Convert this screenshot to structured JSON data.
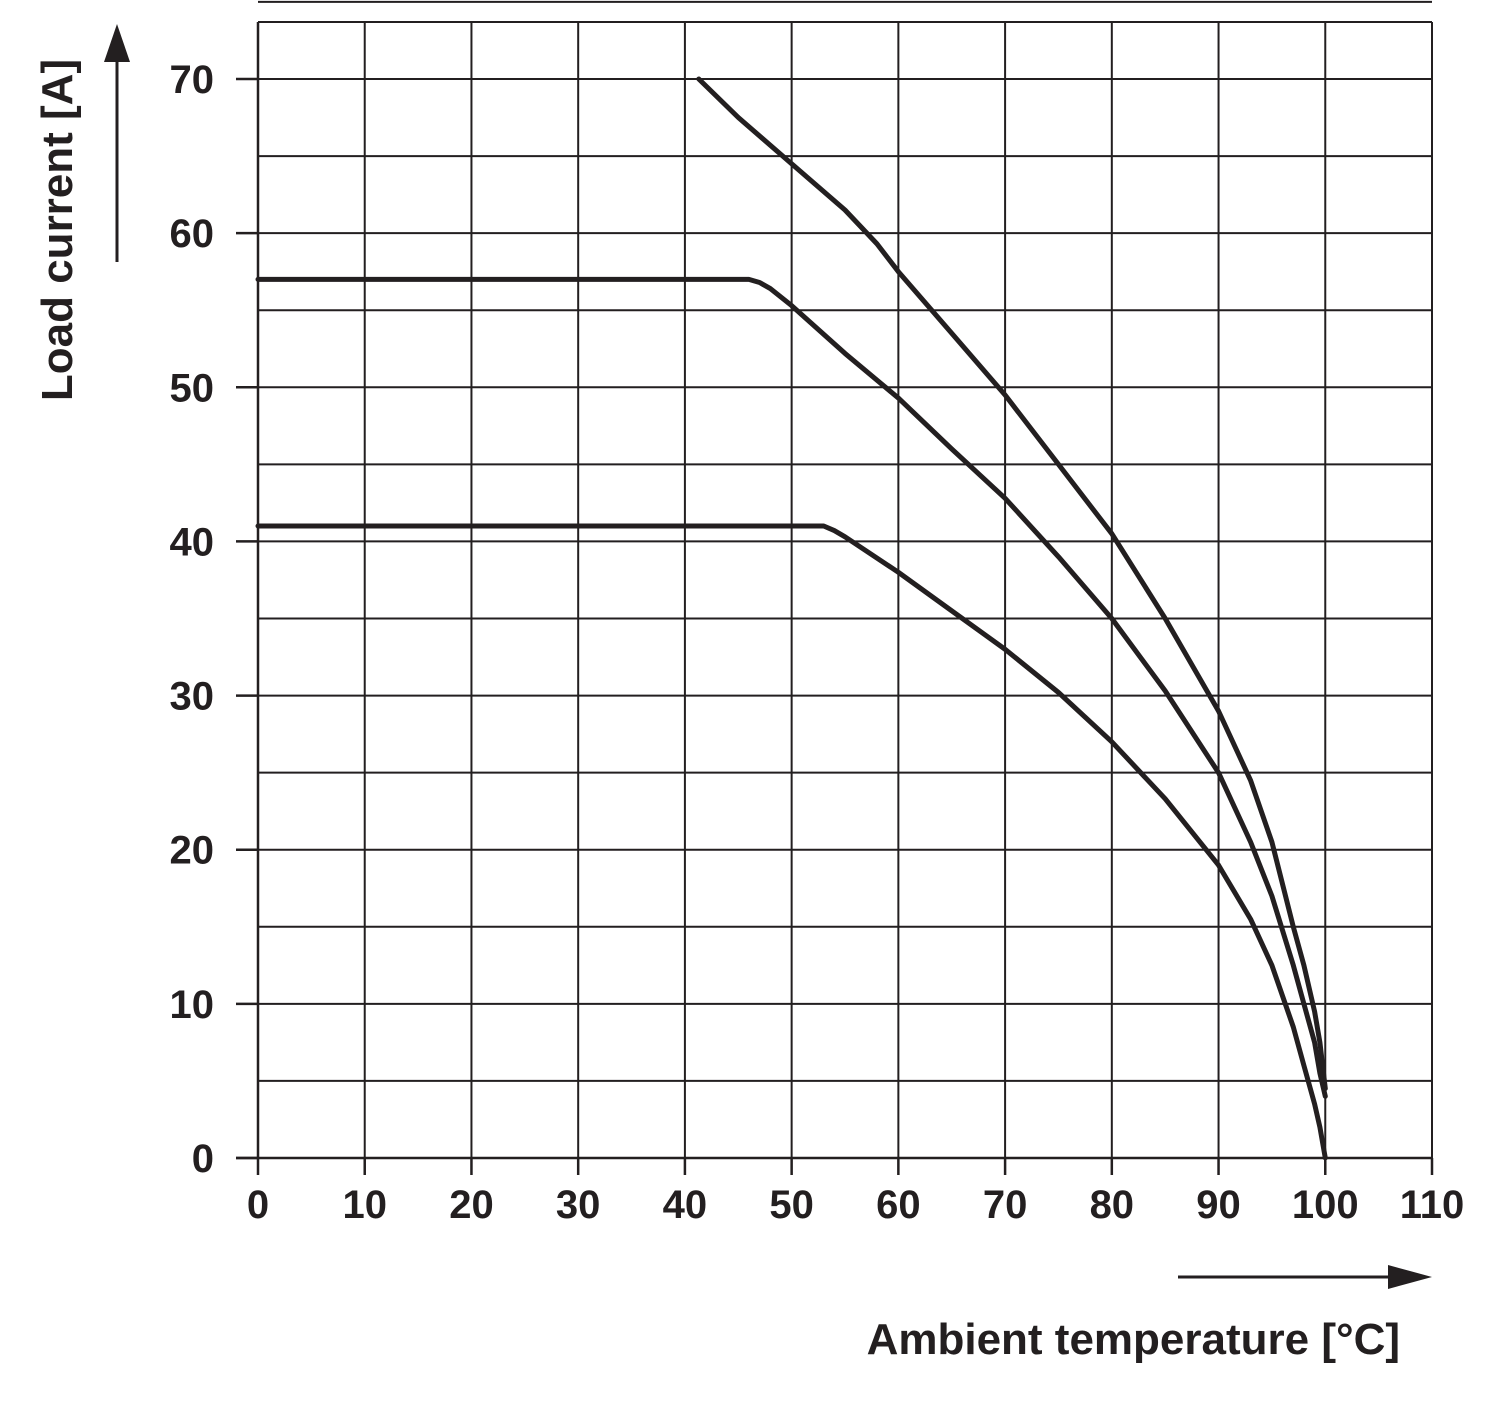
{
  "chart_data": {
    "type": "line",
    "xlabel": "Ambient temperature [°C]",
    "ylabel": "Load current [A]",
    "xlim": [
      0,
      110
    ],
    "ylim": [
      0,
      70
    ],
    "x_ticks": [
      0,
      10,
      20,
      30,
      40,
      50,
      60,
      70,
      80,
      90,
      100,
      110
    ],
    "y_ticks": [
      0,
      10,
      20,
      30,
      40,
      50,
      60,
      70
    ],
    "grid": true,
    "line_color": "#231f20",
    "series": [
      {
        "x": [
          41.3,
          45,
          50,
          55,
          58,
          60,
          65,
          70,
          75,
          80,
          85,
          90,
          93,
          95,
          97,
          98,
          99,
          99.5,
          100
        ],
        "y": [
          70,
          67.5,
          64.5,
          61.5,
          59.3,
          57.5,
          53.5,
          49.5,
          45,
          40.5,
          35,
          29,
          24.5,
          20.5,
          15,
          12.5,
          9.5,
          7.5,
          4.5
        ]
      },
      {
        "x": [
          0,
          46,
          47,
          48,
          50,
          55,
          60,
          65,
          70,
          75,
          80,
          85,
          90,
          93,
          95,
          97,
          98,
          99,
          99.5,
          100
        ],
        "y": [
          57,
          57,
          56.8,
          56.4,
          55.3,
          52.2,
          49.3,
          46,
          42.8,
          39,
          35,
          30.3,
          25,
          20.5,
          17,
          12.5,
          10,
          7.5,
          5.5,
          4
        ]
      },
      {
        "x": [
          0,
          53,
          54,
          55,
          60,
          65,
          70,
          75,
          80,
          85,
          90,
          93,
          95,
          97,
          98,
          99,
          99.5,
          100
        ],
        "y": [
          41,
          41,
          40.7,
          40.3,
          38,
          35.5,
          33,
          30.2,
          27,
          23.3,
          19,
          15.5,
          12.5,
          8.5,
          6,
          3.5,
          2,
          0
        ]
      }
    ]
  }
}
